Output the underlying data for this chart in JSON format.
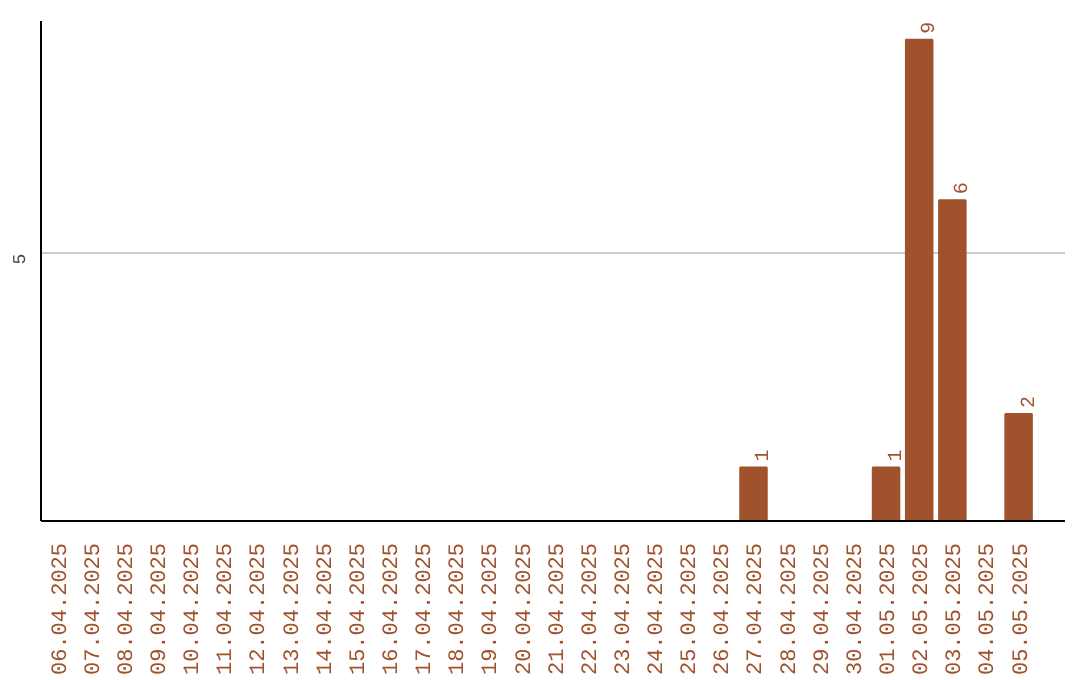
{
  "chart_data": {
    "type": "bar",
    "categories": [
      "06.04.2025",
      "07.04.2025",
      "08.04.2025",
      "09.04.2025",
      "10.04.2025",
      "11.04.2025",
      "12.04.2025",
      "13.04.2025",
      "14.04.2025",
      "15.04.2025",
      "16.04.2025",
      "17.04.2025",
      "18.04.2025",
      "19.04.2025",
      "20.04.2025",
      "21.04.2025",
      "22.04.2025",
      "23.04.2025",
      "24.04.2025",
      "25.04.2025",
      "26.04.2025",
      "27.04.2025",
      "28.04.2025",
      "29.04.2025",
      "30.04.2025",
      "01.05.2025",
      "02.05.2025",
      "03.05.2025",
      "04.05.2025",
      "05.05.2025"
    ],
    "values": [
      null,
      null,
      null,
      null,
      null,
      null,
      null,
      null,
      null,
      null,
      null,
      null,
      null,
      null,
      null,
      null,
      null,
      null,
      null,
      null,
      null,
      1,
      null,
      null,
      null,
      1,
      9,
      6,
      null,
      2
    ],
    "value_labels": [
      null,
      null,
      null,
      null,
      null,
      null,
      null,
      null,
      null,
      null,
      null,
      null,
      null,
      null,
      null,
      null,
      null,
      null,
      null,
      null,
      null,
      "1",
      null,
      null,
      null,
      "1",
      "9",
      "6",
      null,
      "2"
    ],
    "color": "#a0522d",
    "ylim": [
      0,
      9.35
    ],
    "yticks": [
      5
    ],
    "grid": "y"
  }
}
